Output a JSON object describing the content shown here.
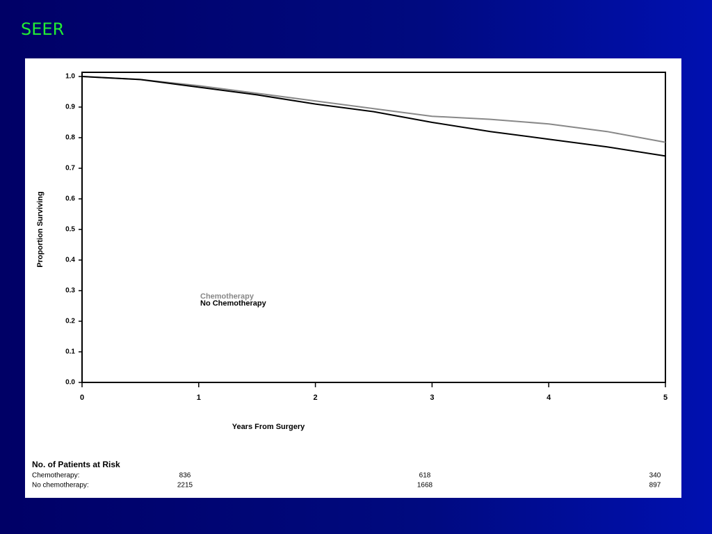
{
  "slide_title": "SEER",
  "chart_data": {
    "type": "line",
    "xlabel": "Years From Surgery",
    "ylabel": "Proportion Surviving",
    "x": [
      0,
      0.5,
      1,
      1.5,
      2,
      2.5,
      3,
      3.5,
      4,
      4.5,
      5
    ],
    "series": [
      {
        "name": "Chemotherapy",
        "color": "#888888",
        "values": [
          1.0,
          0.99,
          0.97,
          0.945,
          0.92,
          0.895,
          0.87,
          0.86,
          0.845,
          0.82,
          0.785
        ]
      },
      {
        "name": "No Chemotherapy",
        "color": "#000000",
        "values": [
          1.0,
          0.99,
          0.965,
          0.94,
          0.91,
          0.885,
          0.85,
          0.82,
          0.795,
          0.77,
          0.74
        ]
      }
    ],
    "xlim": [
      0,
      5
    ],
    "xticks": [
      0,
      1,
      2,
      3,
      4,
      5
    ],
    "ylim": [
      0,
      1
    ],
    "yticks": [
      {
        "value": 0,
        "label": "0.0"
      },
      0.1,
      0.2,
      0.3,
      0.4,
      0.5,
      0.6,
      0.7,
      0.8,
      0.9,
      {
        "value": 1,
        "label": "1.0"
      }
    ],
    "legend": "middle-left",
    "grid": false
  },
  "at_risk": {
    "title": "No. of Patients at Risk",
    "rows": [
      {
        "label": "Chemotherapy:",
        "values": [
          "836",
          "618",
          "340"
        ]
      },
      {
        "label": "No chemotherapy:",
        "values": [
          "2215",
          "1668",
          "897"
        ]
      }
    ]
  }
}
